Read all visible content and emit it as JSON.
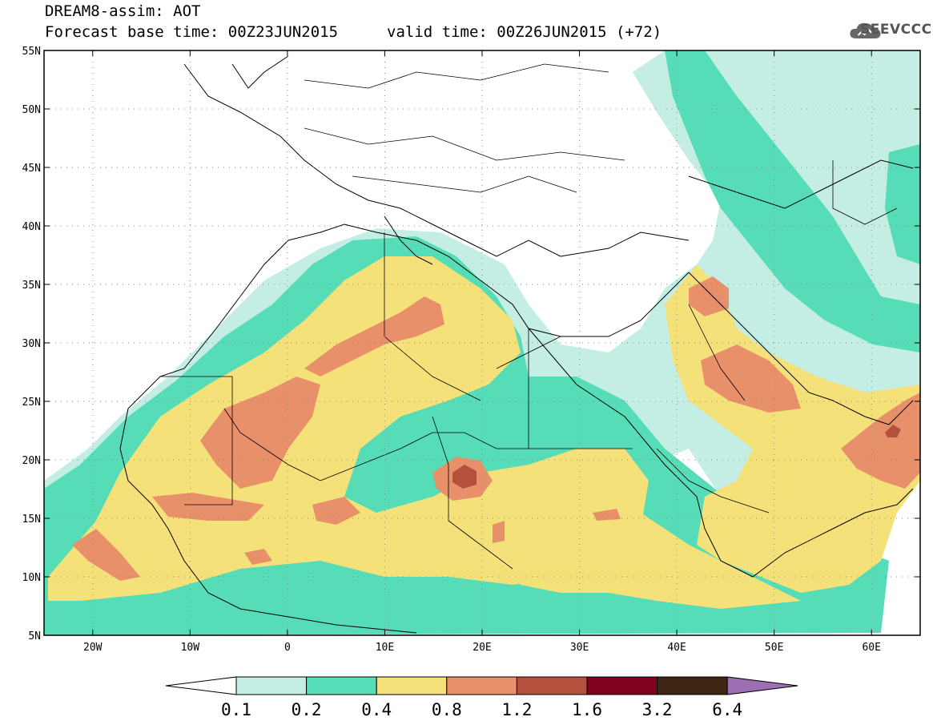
{
  "header": {
    "title": "DREAM8-assim: AOT",
    "base_time": "Forecast base time: 00Z23JUN2015",
    "valid_time": "valid time: 00Z26JUN2015 (+72)"
  },
  "logo": {
    "text": "SEEVCCC",
    "icon": "cloud-icon"
  },
  "map": {
    "lon_range": [
      -25,
      65
    ],
    "lat_range": [
      5,
      55
    ],
    "lat_ticks": [
      "55N",
      "50N",
      "45N",
      "40N",
      "35N",
      "30N",
      "25N",
      "20N",
      "15N",
      "10N",
      "5N"
    ],
    "lon_ticks": [
      "20W",
      "10W",
      "0",
      "10E",
      "20E",
      "30E",
      "40E",
      "50E",
      "60E"
    ],
    "grid": "dotted"
  },
  "colorbar": {
    "levels": [
      "0.1",
      "0.2",
      "0.4",
      "0.8",
      "1.2",
      "1.6",
      "3.2",
      "6.4"
    ],
    "colors": [
      "#ffffff",
      "#c4eee4",
      "#56dcb6",
      "#f5e17a",
      "#e8906a",
      "#b4503e",
      "#800020",
      "#3e2614",
      "#9c6fb2"
    ]
  }
}
